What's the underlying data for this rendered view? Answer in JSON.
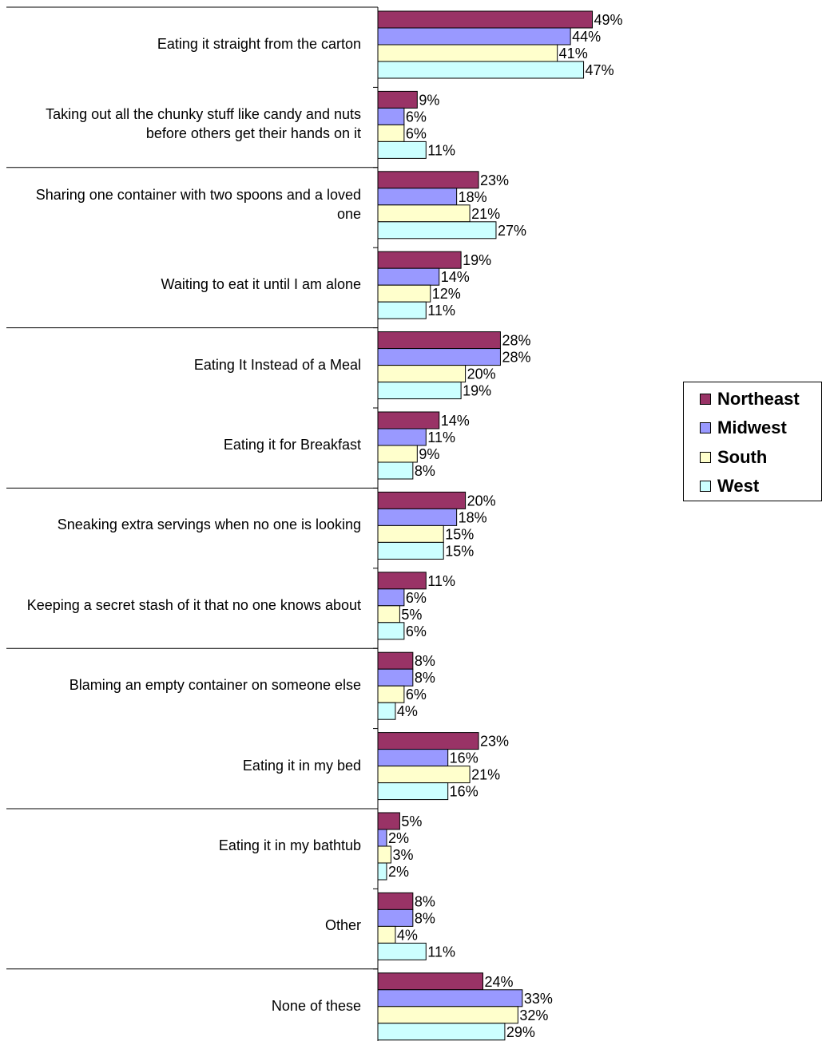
{
  "chart_data": {
    "type": "bar",
    "orientation": "horizontal",
    "categories": [
      "Eating it straight from the carton",
      "Taking out all the chunky stuff like candy and nuts before others get their hands on it",
      "Sharing one container with two spoons and a loved one",
      "Waiting to eat it until I am alone",
      "Eating It Instead of a Meal",
      "Eating it for Breakfast",
      "Sneaking extra servings when no one is looking",
      "Keeping a secret stash of it that no one knows about",
      "Blaming an empty container on someone else",
      "Eating it in my bed",
      "Eating it in my bathtub",
      "Other",
      "None of these"
    ],
    "series": [
      {
        "name": "Northeast",
        "color": "#993366",
        "values": [
          49,
          9,
          23,
          19,
          28,
          14,
          20,
          11,
          8,
          23,
          5,
          8,
          24
        ]
      },
      {
        "name": "Midwest",
        "color": "#9999FF",
        "values": [
          44,
          6,
          18,
          14,
          28,
          11,
          18,
          6,
          8,
          16,
          2,
          8,
          33
        ]
      },
      {
        "name": "South",
        "color": "#FFFFCC",
        "values": [
          41,
          6,
          21,
          12,
          20,
          9,
          15,
          5,
          6,
          21,
          3,
          4,
          32
        ]
      },
      {
        "name": "West",
        "color": "#CCFFFF",
        "values": [
          47,
          11,
          27,
          11,
          19,
          8,
          15,
          6,
          4,
          16,
          2,
          11,
          29
        ]
      }
    ],
    "value_suffix": "%",
    "legend_position": "right"
  }
}
